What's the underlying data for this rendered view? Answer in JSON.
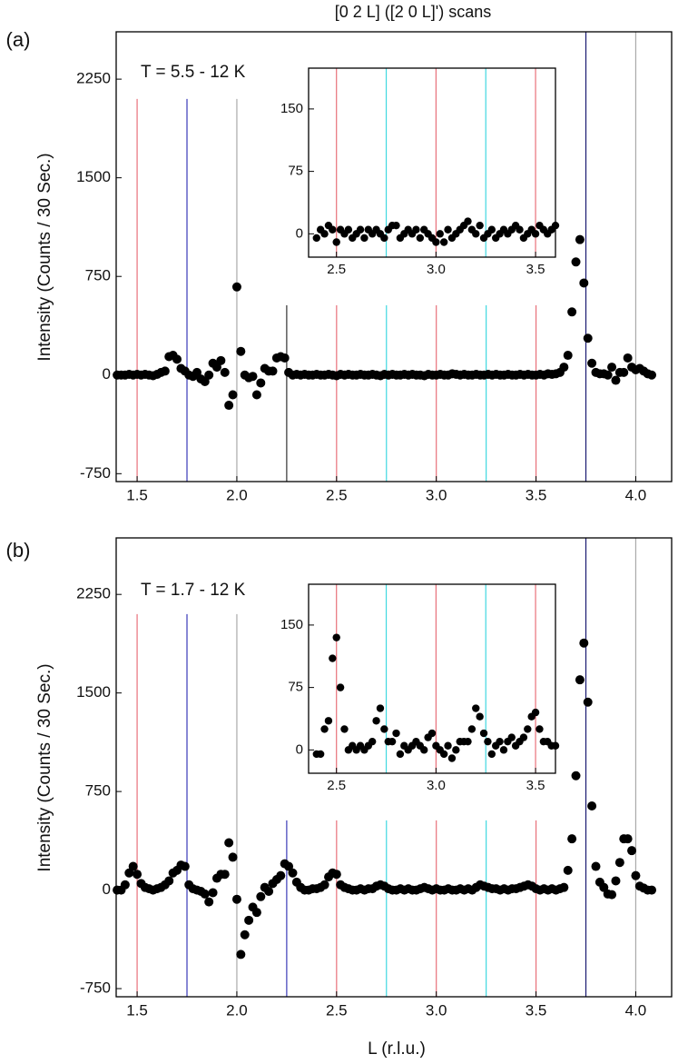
{
  "chart_data": [
    {
      "type": "scatter",
      "title": "[0 2 L] ([2 0 L]') scans",
      "panel_label": "(a)",
      "annotation": "T = 5.5 - 12 K",
      "ylabel": "Intensity (Counts / 30 Sec.)",
      "color": "#000000",
      "xlim": [
        1.395,
        4.18
      ],
      "ylim": [
        -810,
        2610
      ],
      "xticks": [
        1.5,
        {
          "value": 2,
          "label": "2.0"
        },
        2.5,
        {
          "value": 3,
          "label": "3.0"
        },
        3.5,
        {
          "value": 4,
          "label": "4.0"
        }
      ],
      "yticks": [
        -750,
        0,
        750,
        1500,
        2250
      ],
      "reference_lines": [
        {
          "x": 1.5,
          "color": "#e8707a",
          "top": 2100
        },
        {
          "x": 1.75,
          "color": "#3a3ab8",
          "top": 2100
        },
        {
          "x": 2.0,
          "color": "#aaaaaa",
          "top": 2100
        },
        {
          "x": 2.25,
          "color": "#333333",
          "top": 530
        },
        {
          "x": 2.5,
          "color": "#e8707a",
          "top": 530
        },
        {
          "x": 2.75,
          "color": "#40d8e0",
          "top": 530
        },
        {
          "x": 3.0,
          "color": "#e8707a",
          "top": 530
        },
        {
          "x": 3.25,
          "color": "#40d8e0",
          "top": 530
        },
        {
          "x": 3.5,
          "color": "#e8707a",
          "top": 530
        },
        {
          "x": 3.75,
          "color": "#1a1a70"
        },
        {
          "x": 4.0,
          "color": "#aaaaaa"
        }
      ],
      "x": [
        1.4,
        1.42,
        1.44,
        1.46,
        1.48,
        1.5,
        1.52,
        1.54,
        1.56,
        1.58,
        1.6,
        1.62,
        1.64,
        1.66,
        1.68,
        1.7,
        1.72,
        1.74,
        1.76,
        1.78,
        1.8,
        1.82,
        1.84,
        1.86,
        1.88,
        1.9,
        1.92,
        1.94,
        1.96,
        1.98,
        2,
        2.02,
        2.04,
        2.06,
        2.08,
        2.1,
        2.12,
        2.14,
        2.16,
        2.18,
        2.2,
        2.22,
        2.24,
        2.26,
        2.28,
        2.3,
        2.32,
        2.34,
        2.36,
        2.38,
        2.4,
        2.42,
        2.44,
        2.46,
        2.48,
        2.5,
        2.52,
        2.54,
        2.56,
        2.58,
        2.6,
        2.62,
        2.64,
        2.66,
        2.68,
        2.7,
        2.72,
        2.74,
        2.76,
        2.78,
        2.8,
        2.82,
        2.84,
        2.86,
        2.88,
        2.9,
        2.92,
        2.94,
        2.96,
        2.98,
        3,
        3.02,
        3.04,
        3.06,
        3.08,
        3.1,
        3.12,
        3.14,
        3.16,
        3.18,
        3.2,
        3.22,
        3.24,
        3.26,
        3.28,
        3.3,
        3.32,
        3.34,
        3.36,
        3.38,
        3.4,
        3.42,
        3.44,
        3.46,
        3.48,
        3.5,
        3.52,
        3.54,
        3.56,
        3.58,
        3.6,
        3.62,
        3.64,
        3.66,
        3.68,
        3.7,
        3.72,
        3.74,
        3.76,
        3.78,
        3.8,
        3.82,
        3.84,
        3.86,
        3.88,
        3.9,
        3.92,
        3.94,
        3.96,
        3.98,
        4,
        4.02,
        4.04,
        4.06,
        4.08
      ],
      "values": [
        0,
        0,
        0,
        5,
        0,
        5,
        0,
        5,
        0,
        -5,
        5,
        20,
        30,
        140,
        150,
        120,
        50,
        30,
        0,
        -10,
        20,
        -30,
        -50,
        0,
        90,
        60,
        110,
        20,
        -230,
        -150,
        670,
        180,
        0,
        -20,
        -10,
        -150,
        -60,
        50,
        30,
        30,
        130,
        140,
        130,
        20,
        0,
        5,
        0,
        5,
        0,
        0,
        5,
        0,
        0,
        5,
        0,
        -5,
        5,
        0,
        5,
        0,
        0,
        5,
        0,
        0,
        5,
        0,
        -5,
        5,
        0,
        5,
        0,
        0,
        5,
        0,
        5,
        0,
        0,
        -5,
        5,
        0,
        0,
        5,
        0,
        0,
        10,
        5,
        0,
        5,
        0,
        0,
        5,
        0,
        0,
        5,
        0,
        5,
        0,
        0,
        5,
        0,
        0,
        5,
        0,
        5,
        0,
        0,
        5,
        0,
        10,
        5,
        10,
        20,
        60,
        150,
        480,
        860,
        1030,
        700,
        280,
        90,
        20,
        10,
        10,
        0,
        60,
        -40,
        20,
        20,
        130,
        60,
        40,
        50,
        30,
        10,
        0
      ]
    },
    {
      "type": "scatter",
      "color": "#000000",
      "xlim": [
        2.36,
        3.6
      ],
      "ylim": [
        -28,
        199
      ],
      "xticks": [
        2.5,
        {
          "value": 3,
          "label": "3.0"
        },
        3.5
      ],
      "yticks": [
        0,
        75,
        150
      ],
      "reference_lines": [
        {
          "x": 2.5,
          "color": "#e8707a"
        },
        {
          "x": 2.75,
          "color": "#40d8e0"
        },
        {
          "x": 3.0,
          "color": "#e8707a"
        },
        {
          "x": 3.25,
          "color": "#40d8e0"
        },
        {
          "x": 3.5,
          "color": "#e8707a"
        }
      ],
      "x": [
        2.4,
        2.42,
        2.44,
        2.46,
        2.48,
        2.5,
        2.52,
        2.54,
        2.56,
        2.58,
        2.6,
        2.62,
        2.64,
        2.66,
        2.68,
        2.7,
        2.72,
        2.74,
        2.76,
        2.78,
        2.8,
        2.82,
        2.84,
        2.86,
        2.88,
        2.9,
        2.92,
        2.94,
        2.96,
        2.98,
        3,
        3.02,
        3.04,
        3.06,
        3.08,
        3.1,
        3.12,
        3.14,
        3.16,
        3.18,
        3.2,
        3.22,
        3.24,
        3.26,
        3.28,
        3.3,
        3.32,
        3.34,
        3.36,
        3.38,
        3.4,
        3.42,
        3.44,
        3.46,
        3.48,
        3.5,
        3.52,
        3.54,
        3.56,
        3.58,
        3.6
      ],
      "values": [
        -5,
        5,
        0,
        10,
        5,
        -10,
        5,
        0,
        5,
        -5,
        0,
        5,
        -5,
        5,
        0,
        5,
        0,
        -5,
        5,
        10,
        10,
        -5,
        0,
        5,
        0,
        5,
        -5,
        5,
        0,
        -5,
        -10,
        0,
        -10,
        5,
        -5,
        0,
        5,
        10,
        15,
        5,
        0,
        10,
        -5,
        0,
        5,
        -5,
        0,
        5,
        0,
        5,
        10,
        5,
        -5,
        0,
        5,
        0,
        10,
        5,
        0,
        5,
        10
      ]
    },
    {
      "type": "scatter",
      "panel_label": "(b)",
      "annotation": "T = 1.7 - 12 K",
      "ylabel": "Intensity (Counts / 30 Sec.)",
      "xlabel": "L (r.l.u.)",
      "color": "#000000",
      "xlim": [
        1.395,
        4.18
      ],
      "ylim": [
        -812,
        2680
      ],
      "xticks": [
        1.5,
        {
          "value": 2,
          "label": "2.0"
        },
        2.5,
        {
          "value": 3,
          "label": "3.0"
        },
        3.5,
        {
          "value": 4,
          "label": "4.0"
        }
      ],
      "yticks": [
        -750,
        0,
        750,
        1500,
        2250
      ],
      "reference_lines": [
        {
          "x": 1.5,
          "color": "#e8707a",
          "top": 2100
        },
        {
          "x": 1.75,
          "color": "#3a3ab8",
          "top": 2100
        },
        {
          "x": 2.0,
          "color": "#aaaaaa",
          "top": 2100
        },
        {
          "x": 2.25,
          "color": "#3a3ab8",
          "top": 530
        },
        {
          "x": 2.5,
          "color": "#e8707a",
          "top": 530
        },
        {
          "x": 2.75,
          "color": "#40d8e0",
          "top": 530
        },
        {
          "x": 3.0,
          "color": "#e8707a",
          "top": 530
        },
        {
          "x": 3.25,
          "color": "#40d8e0",
          "top": 530
        },
        {
          "x": 3.5,
          "color": "#e8707a",
          "top": 530
        },
        {
          "x": 3.75,
          "color": "#1a1a70"
        },
        {
          "x": 4.0,
          "color": "#aaaaaa"
        }
      ],
      "x": [
        1.4,
        1.42,
        1.44,
        1.46,
        1.48,
        1.5,
        1.52,
        1.54,
        1.56,
        1.58,
        1.6,
        1.62,
        1.64,
        1.66,
        1.68,
        1.7,
        1.72,
        1.74,
        1.76,
        1.78,
        1.8,
        1.82,
        1.84,
        1.86,
        1.88,
        1.9,
        1.92,
        1.94,
        1.96,
        1.98,
        2,
        2.02,
        2.04,
        2.06,
        2.08,
        2.1,
        2.12,
        2.14,
        2.16,
        2.18,
        2.2,
        2.22,
        2.24,
        2.26,
        2.28,
        2.3,
        2.32,
        2.34,
        2.36,
        2.38,
        2.4,
        2.42,
        2.44,
        2.46,
        2.48,
        2.5,
        2.52,
        2.54,
        2.56,
        2.58,
        2.6,
        2.62,
        2.64,
        2.66,
        2.68,
        2.7,
        2.72,
        2.74,
        2.76,
        2.78,
        2.8,
        2.82,
        2.84,
        2.86,
        2.88,
        2.9,
        2.92,
        2.94,
        2.96,
        2.98,
        3,
        3.02,
        3.04,
        3.06,
        3.08,
        3.1,
        3.12,
        3.14,
        3.16,
        3.18,
        3.2,
        3.22,
        3.24,
        3.26,
        3.28,
        3.3,
        3.32,
        3.34,
        3.36,
        3.38,
        3.4,
        3.42,
        3.44,
        3.46,
        3.48,
        3.5,
        3.52,
        3.54,
        3.56,
        3.58,
        3.6,
        3.62,
        3.64,
        3.66,
        3.68,
        3.7,
        3.72,
        3.74,
        3.76,
        3.78,
        3.8,
        3.82,
        3.84,
        3.86,
        3.88,
        3.9,
        3.92,
        3.94,
        3.96,
        3.98,
        4,
        4.02,
        4.04,
        4.06,
        4.08
      ],
      "values": [
        0,
        0,
        40,
        130,
        180,
        120,
        50,
        20,
        10,
        0,
        10,
        20,
        40,
        70,
        130,
        150,
        190,
        180,
        40,
        10,
        0,
        -10,
        -30,
        -90,
        -20,
        90,
        120,
        120,
        360,
        250,
        -70,
        -490,
        -340,
        -230,
        -130,
        -170,
        -50,
        20,
        -10,
        50,
        80,
        110,
        200,
        180,
        130,
        60,
        20,
        0,
        0,
        10,
        10,
        20,
        40,
        100,
        130,
        120,
        40,
        20,
        10,
        0,
        0,
        10,
        0,
        10,
        10,
        30,
        40,
        30,
        10,
        0,
        0,
        10,
        0,
        10,
        0,
        0,
        10,
        20,
        10,
        0,
        10,
        0,
        0,
        10,
        0,
        0,
        10,
        0,
        10,
        0,
        20,
        40,
        30,
        20,
        10,
        10,
        0,
        10,
        0,
        10,
        10,
        20,
        30,
        40,
        30,
        10,
        0,
        10,
        0,
        10,
        0,
        10,
        20,
        150,
        390,
        870,
        1600,
        1880,
        1430,
        640,
        180,
        60,
        20,
        -30,
        -35,
        70,
        210,
        390,
        390,
        300,
        110,
        30,
        15,
        0,
        0
      ]
    },
    {
      "type": "scatter",
      "color": "#000000",
      "xlim": [
        2.36,
        3.6
      ],
      "ylim": [
        -28,
        199
      ],
      "xticks": [
        2.5,
        {
          "value": 3,
          "label": "3.0"
        },
        3.5
      ],
      "yticks": [
        0,
        75,
        150
      ],
      "reference_lines": [
        {
          "x": 2.5,
          "color": "#e8707a"
        },
        {
          "x": 2.75,
          "color": "#40d8e0"
        },
        {
          "x": 3.0,
          "color": "#e8707a"
        },
        {
          "x": 3.25,
          "color": "#40d8e0"
        },
        {
          "x": 3.5,
          "color": "#e8707a"
        }
      ],
      "x": [
        2.4,
        2.42,
        2.44,
        2.46,
        2.48,
        2.5,
        2.52,
        2.54,
        2.56,
        2.58,
        2.6,
        2.62,
        2.64,
        2.66,
        2.68,
        2.7,
        2.72,
        2.74,
        2.76,
        2.78,
        2.8,
        2.82,
        2.84,
        2.86,
        2.88,
        2.9,
        2.92,
        2.94,
        2.96,
        2.98,
        3,
        3.02,
        3.04,
        3.06,
        3.08,
        3.1,
        3.12,
        3.14,
        3.16,
        3.18,
        3.2,
        3.22,
        3.24,
        3.26,
        3.28,
        3.3,
        3.32,
        3.34,
        3.36,
        3.38,
        3.4,
        3.42,
        3.44,
        3.46,
        3.48,
        3.5,
        3.52,
        3.54,
        3.56,
        3.58,
        3.6
      ],
      "values": [
        -5,
        -5,
        25,
        35,
        110,
        135,
        75,
        25,
        0,
        5,
        0,
        5,
        0,
        5,
        10,
        35,
        50,
        25,
        10,
        10,
        20,
        -5,
        5,
        0,
        5,
        10,
        5,
        0,
        15,
        20,
        5,
        0,
        -5,
        5,
        -10,
        0,
        10,
        10,
        10,
        25,
        50,
        40,
        20,
        10,
        -5,
        5,
        10,
        0,
        10,
        15,
        5,
        10,
        15,
        25,
        40,
        45,
        25,
        10,
        10,
        5,
        5
      ]
    }
  ]
}
